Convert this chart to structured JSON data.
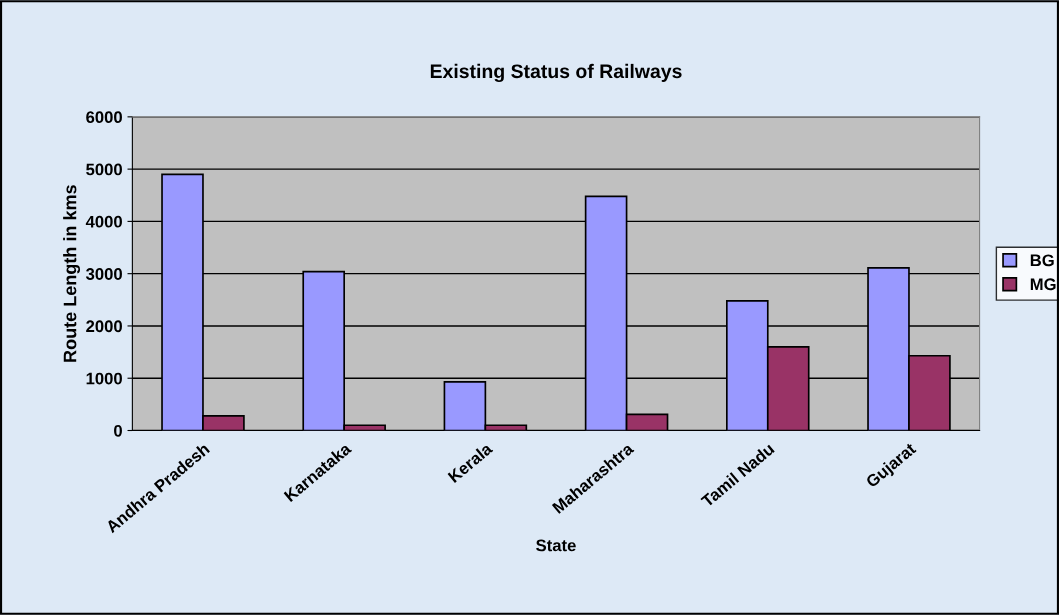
{
  "chart_data": {
    "type": "bar",
    "title": "Existing Status of Railways",
    "xlabel": "State",
    "ylabel": "Route Length in kms",
    "categories": [
      "Andhra Pradesh",
      "Karnataka",
      "Kerala",
      "Maharashtra",
      "Tamil Nadu",
      "Gujarat"
    ],
    "series": [
      {
        "name": "BG",
        "color": "#9999ff",
        "values": [
          4900,
          3040,
          930,
          4480,
          2480,
          3110
        ]
      },
      {
        "name": "MG",
        "color": "#993366",
        "values": [
          280,
          100,
          100,
          310,
          1600,
          1430
        ]
      }
    ],
    "ylim": [
      0,
      6000
    ],
    "yticks": [
      0,
      1000,
      2000,
      3000,
      4000,
      5000,
      6000
    ],
    "grid": "y",
    "legend": "right"
  }
}
